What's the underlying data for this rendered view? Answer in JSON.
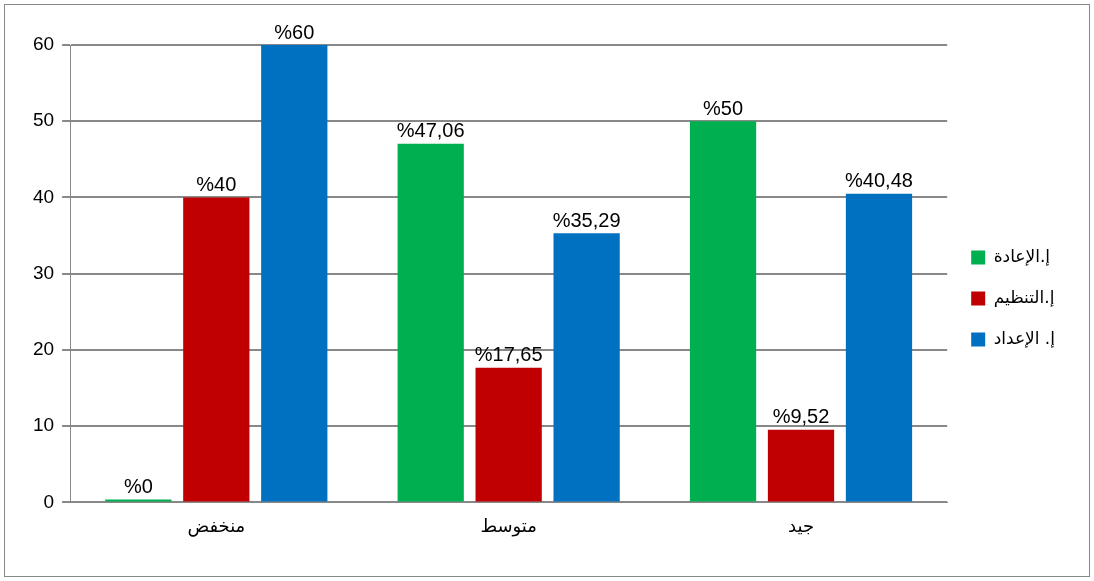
{
  "chart_data": {
    "type": "bar",
    "categories": [
      "منخفض",
      "متوسط",
      "جيد"
    ],
    "series": [
      {
        "name": "إ.الإعادة",
        "color": "#00b050",
        "values": [
          0,
          47.06,
          50
        ],
        "value_labels": [
          "%0",
          "%47,06",
          "%50"
        ]
      },
      {
        "name": "إ.التنظيم",
        "color": "#c00000",
        "values": [
          40,
          17.65,
          9.52
        ],
        "value_labels": [
          "%40",
          "%17,65",
          "%9,52"
        ]
      },
      {
        "name": "إ. الإعداد",
        "color": "#0070c0",
        "values": [
          60,
          35.29,
          40.48
        ],
        "value_labels": [
          "%60",
          "%35,29",
          "%40,48"
        ]
      }
    ],
    "ylim": [
      0,
      60
    ],
    "yticks": [
      0,
      10,
      20,
      30,
      40,
      50,
      60
    ],
    "grid": "y",
    "legend": "right"
  }
}
